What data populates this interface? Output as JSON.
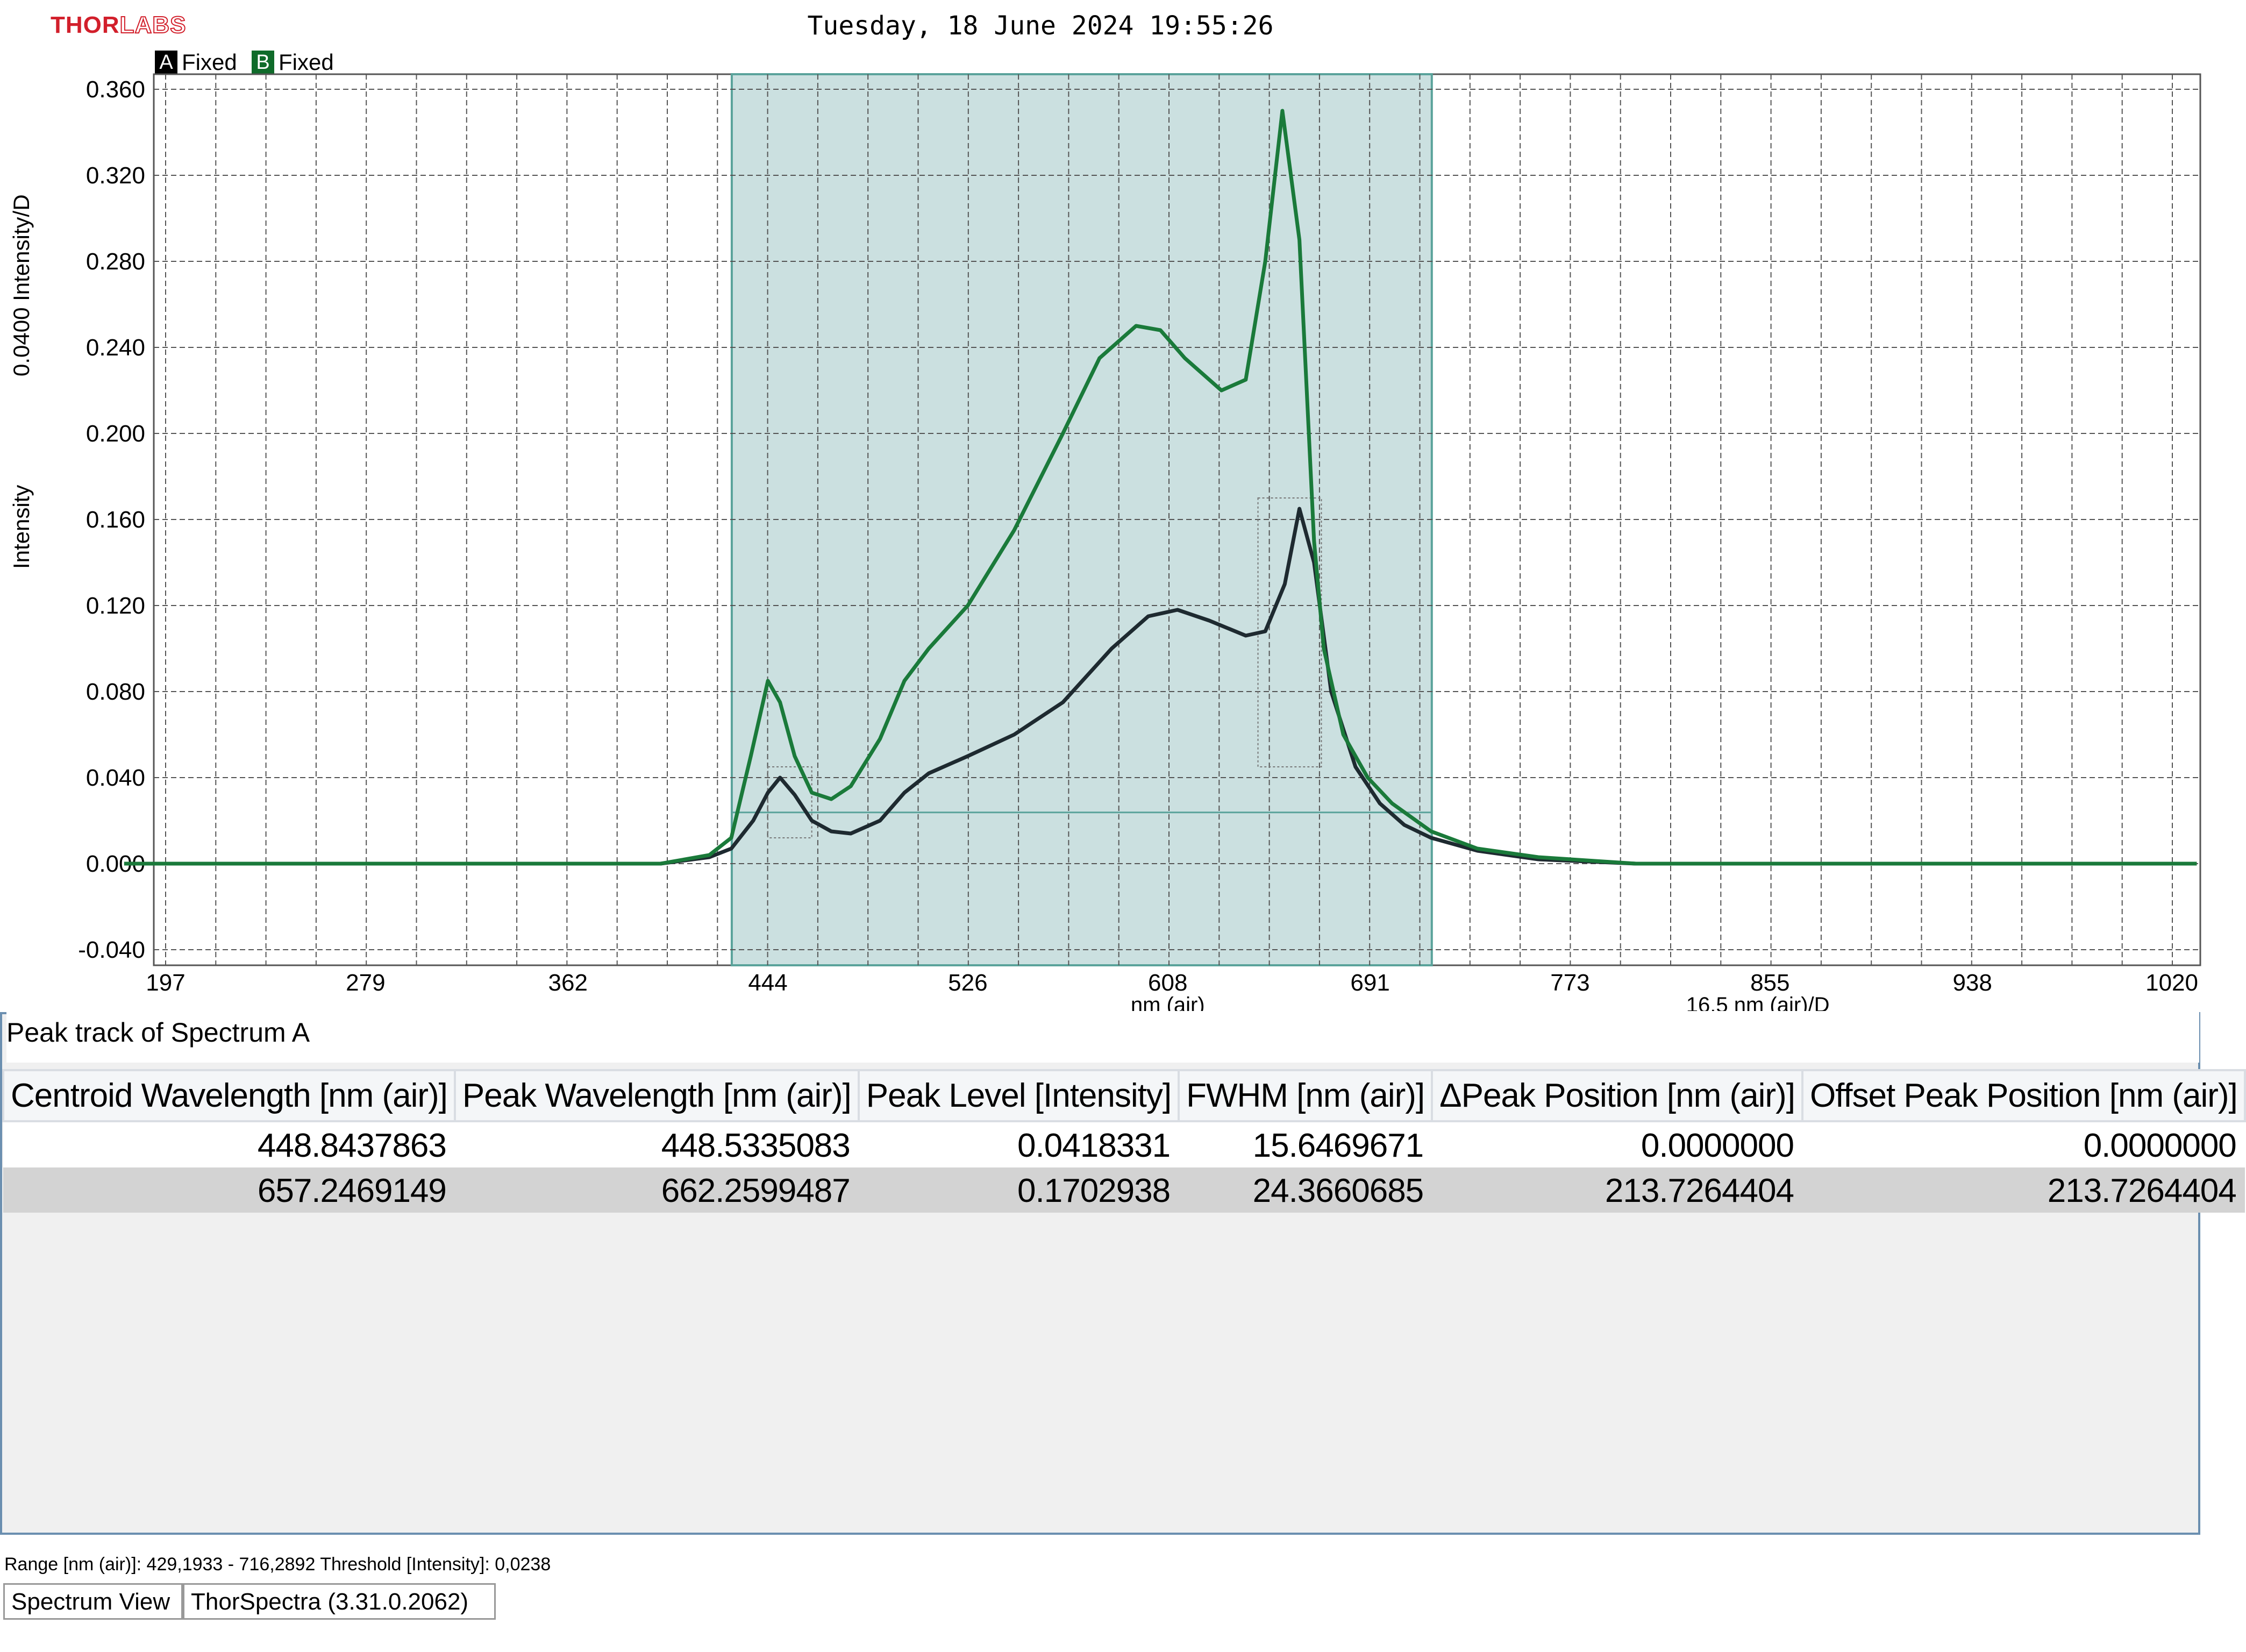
{
  "header": {
    "logo_text_thor": "THOR",
    "logo_text_labs": "LABS",
    "timestamp": "Tuesday, 18 June 2024 19:55:26"
  },
  "legend": [
    {
      "letter": "A",
      "label": "Fixed",
      "color": "#000000"
    },
    {
      "letter": "B",
      "label": "Fixed",
      "color": "#0f6b2a"
    }
  ],
  "axes": {
    "y_label_top": "0.0400 Intensity/D",
    "y_label_bottom": "Intensity",
    "x_label": "nm (air)",
    "x_scale_label": "16.5 nm (air)/D"
  },
  "chart_data": {
    "type": "line",
    "xlabel": "nm (air)",
    "ylabel": "Intensity",
    "xlim": [
      180,
      1030
    ],
    "ylim": [
      -0.04,
      0.36
    ],
    "x_ticks": [
      "197",
      "279",
      "362",
      "444",
      "526",
      "608",
      "691",
      "773",
      "855",
      "938",
      "1020"
    ],
    "y_ticks": [
      "0.360",
      "0.320",
      "0.280",
      "0.240",
      "0.200",
      "0.160",
      "0.120",
      "0.080",
      "0.040",
      "0.000",
      "-0.040"
    ],
    "grid": true,
    "selected_range": [
      429.1933,
      716.2892
    ],
    "threshold": 0.0238,
    "series": [
      {
        "name": "A",
        "color": "#1e2a30",
        "x": [
          180,
          300,
          400,
          420,
          429,
          438,
          444,
          449,
          455,
          462,
          470,
          478,
          490,
          500,
          510,
          526,
          545,
          565,
          585,
          600,
          612,
          625,
          640,
          648,
          656,
          662,
          668,
          675,
          685,
          695,
          705,
          716,
          735,
          760,
          800,
          1030
        ],
        "y": [
          0.0,
          0.0,
          0.0,
          0.003,
          0.007,
          0.02,
          0.033,
          0.04,
          0.032,
          0.02,
          0.015,
          0.014,
          0.02,
          0.033,
          0.042,
          0.05,
          0.06,
          0.075,
          0.1,
          0.115,
          0.118,
          0.113,
          0.106,
          0.108,
          0.13,
          0.165,
          0.14,
          0.08,
          0.045,
          0.028,
          0.018,
          0.012,
          0.006,
          0.002,
          0.0,
          0.0
        ]
      },
      {
        "name": "B",
        "color": "#1a7a3a",
        "x": [
          180,
          300,
          400,
          420,
          429,
          437,
          444,
          449,
          455,
          462,
          470,
          478,
          490,
          500,
          510,
          526,
          545,
          565,
          580,
          595,
          605,
          615,
          630,
          640,
          648,
          655,
          662,
          668,
          672,
          680,
          690,
          700,
          716,
          735,
          760,
          800,
          1030
        ],
        "y": [
          0.0,
          0.0,
          0.0,
          0.004,
          0.012,
          0.05,
          0.085,
          0.075,
          0.05,
          0.033,
          0.03,
          0.036,
          0.058,
          0.085,
          0.1,
          0.12,
          0.155,
          0.2,
          0.235,
          0.25,
          0.248,
          0.235,
          0.22,
          0.225,
          0.28,
          0.35,
          0.29,
          0.15,
          0.1,
          0.06,
          0.04,
          0.028,
          0.015,
          0.007,
          0.003,
          0.0,
          0.0
        ]
      }
    ]
  },
  "peak_panel": {
    "title": "Peak track of Spectrum A",
    "columns": [
      "Centroid Wavelength [nm (air)]",
      "Peak Wavelength [nm (air)]",
      "Peak Level [Intensity]",
      "FWHM [nm (air)]",
      "ΔPeak Position [nm (air)]",
      "Offset Peak Position [nm (air)]"
    ],
    "rows": [
      [
        "448.8437863",
        "448.5335083",
        "0.0418331",
        "15.6469671",
        "0.0000000",
        "0.0000000"
      ],
      [
        "657.2469149",
        "662.2599487",
        "0.1702938",
        "24.3660685",
        "213.7264404",
        "213.7264404"
      ]
    ]
  },
  "status": {
    "range_text": "Range [nm (air)]: 429,1933 - 716,2892  Threshold [Intensity]: 0,0238"
  },
  "tabs": [
    "Spectrum View",
    "ThorSpectra (3.31.0.2062)"
  ]
}
